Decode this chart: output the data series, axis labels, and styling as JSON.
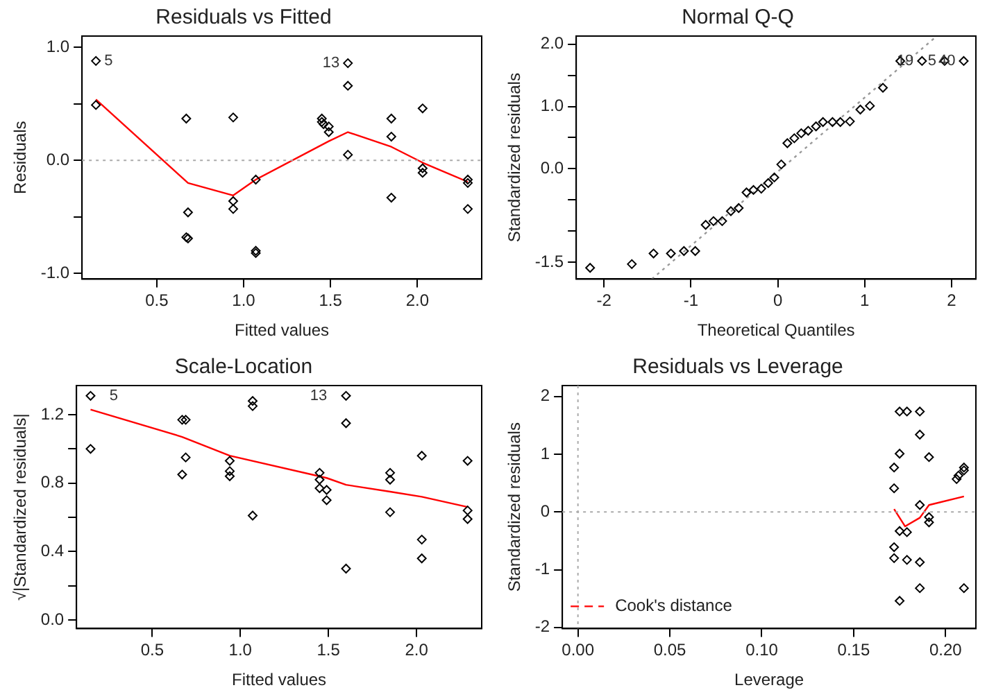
{
  "chart_data": [
    {
      "type": "scatter",
      "title": "Residuals vs Fitted",
      "xlabel": "Fitted values",
      "ylabel": "Residuals",
      "xlim": [
        0.07,
        2.37
      ],
      "ylim": [
        -1.05,
        1.1
      ],
      "xticks": [
        {
          "value": 0.5,
          "label": "0.5"
        },
        {
          "value": 1,
          "label": "1.0"
        },
        {
          "value": 1.5,
          "label": "1.5"
        },
        {
          "value": 2,
          "label": "2.0"
        }
      ],
      "yticks": [
        {
          "value": -1,
          "label": "-1.0"
        },
        {
          "value": -0.5,
          "label": null
        },
        {
          "value": 0,
          "label": "0.0"
        },
        {
          "value": 0.5,
          "label": null
        },
        {
          "value": 1,
          "label": "1.0"
        }
      ],
      "grid": false,
      "marker": "diamond",
      "legend": false,
      "ref_lines": [
        {
          "axis": "y",
          "value": 0,
          "color": "#aaaaaa",
          "line_style": "dotted"
        }
      ],
      "annotations": [
        {
          "text": "5",
          "x": 0.15,
          "y": 0.88
        },
        {
          "text": "13",
          "x": 1.6,
          "y": 0.86
        }
      ],
      "series": [
        {
          "type": "scatter",
          "color": "#000000",
          "x": [
            0.15,
            0.15,
            0.67,
            0.68,
            0.67,
            0.68,
            0.94,
            0.94,
            0.94,
            1.07,
            1.07,
            1.07,
            1.45,
            1.45,
            1.46,
            1.49,
            1.49,
            1.6,
            1.6,
            1.6,
            1.85,
            1.85,
            1.85,
            2.03,
            2.03,
            2.03,
            2.29,
            2.29,
            2.29
          ],
          "values": [
            0.88,
            0.49,
            0.37,
            -0.46,
            -0.68,
            -0.69,
            0.38,
            -0.36,
            -0.43,
            -0.17,
            -0.8,
            -0.82,
            0.37,
            0.34,
            0.32,
            0.3,
            0.25,
            0.86,
            0.66,
            0.05,
            0.37,
            0.21,
            -0.33,
            0.46,
            -0.07,
            -0.11,
            -0.17,
            -0.2,
            -0.43
          ]
        },
        {
          "type": "line",
          "marker": "none",
          "color": "#ff0000",
          "line_style": "solid",
          "x": [
            0.15,
            0.68,
            0.94,
            1.07,
            1.49,
            1.6,
            1.85,
            2.03,
            2.29
          ],
          "values": [
            0.54,
            -0.2,
            -0.31,
            -0.17,
            0.17,
            0.25,
            0.12,
            -0.02,
            -0.19
          ]
        }
      ]
    },
    {
      "type": "scatter",
      "title": "Normal Q-Q",
      "xlabel": "Theoretical Quantiles",
      "ylabel": "Standardized residuals",
      "xlim": [
        -2.32,
        2.28
      ],
      "ylim": [
        -1.77,
        2.13
      ],
      "xticks": [
        -2,
        -1,
        0,
        1,
        2
      ],
      "yticks": [
        {
          "value": -1.5,
          "label": "-1.5"
        },
        {
          "value": -1,
          "label": null
        },
        {
          "value": -0.5,
          "label": null
        },
        {
          "value": 0,
          "label": "0.0"
        },
        {
          "value": 0.5,
          "label": null
        },
        {
          "value": 1,
          "label": "1.0"
        },
        {
          "value": 1.5,
          "label": null
        },
        {
          "value": 2,
          "label": "2.0"
        }
      ],
      "grid": false,
      "marker": "diamond",
      "legend": false,
      "annotations": [
        {
          "text": "19",
          "x": 1.66,
          "y": 1.73
        },
        {
          "text": "5",
          "x": 1.92,
          "y": 1.73
        },
        {
          "text": "40",
          "x": 2.14,
          "y": 1.73
        }
      ],
      "series": [
        {
          "type": "scatter",
          "color": "#000000",
          "x": [
            -2.16,
            -1.68,
            -1.43,
            -1.23,
            -1.08,
            -0.95,
            -0.83,
            -0.74,
            -0.64,
            -0.54,
            -0.45,
            -0.36,
            -0.28,
            -0.19,
            -0.11,
            -0.04,
            0.04,
            0.11,
            0.19,
            0.27,
            0.35,
            0.44,
            0.52,
            0.63,
            0.72,
            0.83,
            0.95,
            1.06,
            1.21,
            1.41,
            1.66,
            1.92,
            2.14
          ],
          "values": [
            -1.59,
            -1.53,
            -1.36,
            -1.36,
            -1.32,
            -1.32,
            -0.9,
            -0.84,
            -0.84,
            -0.68,
            -0.63,
            -0.38,
            -0.34,
            -0.32,
            -0.23,
            -0.14,
            0.07,
            0.41,
            0.49,
            0.57,
            0.61,
            0.68,
            0.75,
            0.75,
            0.75,
            0.76,
            0.95,
            1.01,
            1.3,
            1.73,
            1.73,
            1.73,
            1.73
          ]
        },
        {
          "type": "line",
          "marker": "none",
          "color": "#999999",
          "line_style": "dotted",
          "x": [
            -1.45,
            1.83
          ],
          "values": [
            -1.77,
            2.13
          ]
        }
      ]
    },
    {
      "type": "scatter",
      "title": "Scale-Location",
      "xlabel": "Fitted values",
      "ylabel": "√|Standardized residuals|",
      "xlim": [
        0.07,
        2.37
      ],
      "ylim": [
        -0.05,
        1.37
      ],
      "xticks": [
        {
          "value": 0.5,
          "label": "0.5"
        },
        {
          "value": 1,
          "label": "1.0"
        },
        {
          "value": 1.5,
          "label": "1.5"
        },
        {
          "value": 2,
          "label": "2.0"
        }
      ],
      "yticks": [
        {
          "value": 0,
          "label": "0.0"
        },
        {
          "value": 0.2,
          "label": null
        },
        {
          "value": 0.4,
          "label": "0.4"
        },
        {
          "value": 0.6,
          "label": null
        },
        {
          "value": 0.8,
          "label": "0.8"
        },
        {
          "value": 1,
          "label": null
        },
        {
          "value": 1.2,
          "label": "1.2"
        }
      ],
      "grid": false,
      "marker": "diamond",
      "legend": false,
      "annotations": [
        {
          "text": "5",
          "x": 0.21,
          "y": 1.31
        },
        {
          "text": "13",
          "x": 1.54,
          "y": 1.31
        }
      ],
      "series": [
        {
          "type": "scatter",
          "color": "#000000",
          "x": [
            0.15,
            0.15,
            0.67,
            0.69,
            0.69,
            0.67,
            0.94,
            0.94,
            0.94,
            1.07,
            1.07,
            1.07,
            1.45,
            1.45,
            1.45,
            1.49,
            1.49,
            1.6,
            1.6,
            1.6,
            1.85,
            1.85,
            1.85,
            2.03,
            2.03,
            2.03,
            2.29,
            2.29,
            2.29
          ],
          "values": [
            1.31,
            1.0,
            1.17,
            1.17,
            0.95,
            0.85,
            0.93,
            0.87,
            0.84,
            1.28,
            1.25,
            0.61,
            0.86,
            0.82,
            0.77,
            0.76,
            0.7,
            1.31,
            1.15,
            0.3,
            0.86,
            0.82,
            0.63,
            0.96,
            0.47,
            0.36,
            0.93,
            0.64,
            0.59
          ]
        },
        {
          "type": "line",
          "marker": "none",
          "color": "#ff0000",
          "line_style": "solid",
          "x": [
            0.15,
            0.67,
            0.94,
            1.49,
            1.6,
            1.85,
            2.03,
            2.29
          ],
          "values": [
            1.23,
            1.07,
            0.96,
            0.83,
            0.79,
            0.75,
            0.72,
            0.66
          ]
        }
      ]
    },
    {
      "type": "scatter",
      "title": "Residuals vs Leverage",
      "xlabel": "Leverage",
      "ylabel": "Standardized residuals",
      "xlim": [
        -0.0085,
        0.2165
      ],
      "ylim": [
        -2.02,
        2.19
      ],
      "xticks": [
        {
          "value": 0,
          "label": "0.00"
        },
        {
          "value": 0.05,
          "label": "0.05"
        },
        {
          "value": 0.1,
          "label": "0.10"
        },
        {
          "value": 0.15,
          "label": "0.15"
        },
        {
          "value": 0.2,
          "label": "0.20"
        }
      ],
      "yticks": [
        -2,
        -1,
        0,
        1,
        2
      ],
      "grid": false,
      "marker": "diamond",
      "legend": "bottom left",
      "ref_lines": [
        {
          "axis": "y",
          "value": 0,
          "color": "#aaaaaa",
          "line_style": "dotted"
        },
        {
          "axis": "x",
          "value": 0,
          "color": "#aaaaaa",
          "line_style": "dotted"
        }
      ],
      "series": [
        {
          "type": "scatter",
          "color": "#000000",
          "x": [
            0.175,
            0.179,
            0.186,
            0.186,
            0.175,
            0.172,
            0.191,
            0.172,
            0.186,
            0.191,
            0.191,
            0.175,
            0.179,
            0.172,
            0.172,
            0.179,
            0.186,
            0.186,
            0.175,
            0.206,
            0.207,
            0.21,
            0.21,
            0.21
          ],
          "values": [
            1.74,
            1.74,
            1.74,
            1.34,
            1.01,
            0.77,
            0.95,
            0.41,
            0.12,
            -0.09,
            -0.18,
            -0.33,
            -0.35,
            -0.61,
            -0.8,
            -0.83,
            -0.87,
            -1.32,
            -1.54,
            0.57,
            0.63,
            0.72,
            0.77,
            -1.32
          ]
        },
        {
          "type": "line",
          "marker": "none",
          "color": "#ff0000",
          "line_style": "solid",
          "x": [
            0.172,
            0.178,
            0.186,
            0.191,
            0.21
          ],
          "values": [
            0.05,
            -0.25,
            -0.1,
            0.12,
            0.27
          ]
        },
        {
          "type": "line",
          "marker": "none",
          "name": "Cook's distance",
          "color": "#ff0000",
          "line_style": "dashed"
        }
      ]
    }
  ]
}
